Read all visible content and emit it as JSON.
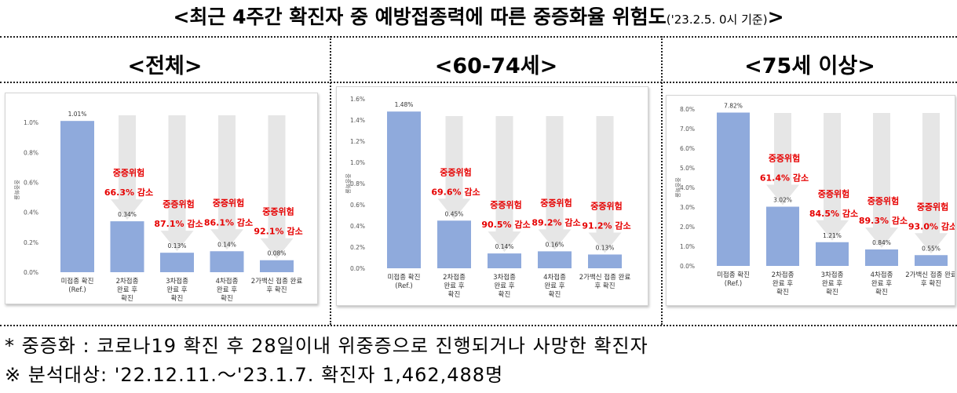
{
  "header": {
    "title_main": "<최근 4주간 확진자 중 예방접종력에 따른 중증화율 위험도",
    "title_sub": "('23.2.5. 0시 기준)",
    "title_end": ">"
  },
  "notes": {
    "definition": "* 중증화 : 코로나19 확진 후 28일이내 위중증으로 진행되거나 사망한 확진자",
    "analysis": "※ 분석대상: '22.12.11.～'23.1.7. 확진자 1,462,488명"
  },
  "colors": {
    "bar": "#8faadc",
    "arrow": "#e6e6e6",
    "risk_text": "#e60000"
  },
  "chart_data": [
    {
      "panel_title": "<전체>",
      "type": "bar",
      "ylabel": "중증화율",
      "ylim": [
        0,
        1.1
      ],
      "yticks": [
        "0.0%",
        "0.2%",
        "0.4%",
        "0.6%",
        "0.8%",
        "1.0%"
      ],
      "ytick_values": [
        0,
        0.2,
        0.4,
        0.6,
        0.8,
        1.0
      ],
      "categories": [
        [
          "미접종 확진",
          "(Ref.)"
        ],
        [
          "2차접종",
          "완료 후",
          "확진"
        ],
        [
          "3차접종",
          "완료 후",
          "확진"
        ],
        [
          "4차접종",
          "완료 후",
          "확진"
        ],
        [
          "2가백신 접종 완료",
          "후 확진"
        ]
      ],
      "values": [
        1.01,
        0.34,
        0.13,
        0.14,
        0.08
      ],
      "value_labels": [
        "1.01%",
        "0.34%",
        "0.13%",
        "0.14%",
        "0.08%"
      ],
      "risk_labels": [
        "",
        "중증위험",
        "중증위험",
        "중증위험",
        "중증위험"
      ],
      "risk_reductions": [
        "",
        "66.3% 감소",
        "87.1% 감소",
        "86.1% 감소",
        "92.1% 감소"
      ]
    },
    {
      "panel_title": "<60-74세>",
      "type": "bar",
      "ylabel": "중증화율",
      "ylim": [
        0,
        1.6
      ],
      "yticks": [
        "0.0%",
        "0.2%",
        "0.4%",
        "0.6%",
        "0.8%",
        "1.0%",
        "1.2%",
        "1.4%",
        "1.6%"
      ],
      "ytick_values": [
        0,
        0.2,
        0.4,
        0.6,
        0.8,
        1.0,
        1.2,
        1.4,
        1.6
      ],
      "categories": [
        [
          "미접종 확진",
          "(Ref.)"
        ],
        [
          "2차접종",
          "완료 후",
          "확진"
        ],
        [
          "3차접종",
          "완료 후",
          "확진"
        ],
        [
          "4차접종",
          "완료 후",
          "확진"
        ],
        [
          "2가백신 접종 완료",
          "후 확진"
        ]
      ],
      "values": [
        1.48,
        0.45,
        0.14,
        0.16,
        0.13
      ],
      "value_labels": [
        "1.48%",
        "0.45%",
        "0.14%",
        "0.16%",
        "0.13%"
      ],
      "risk_labels": [
        "",
        "중증위험",
        "중증위험",
        "중증위험",
        "중증위험"
      ],
      "risk_reductions": [
        "",
        "69.6% 감소",
        "90.5% 감소",
        "89.2% 감소",
        "91.2% 감소"
      ]
    },
    {
      "panel_title": "<75세 이상>",
      "type": "bar",
      "ylabel": "중증화율",
      "ylim": [
        0,
        8.0
      ],
      "yticks": [
        "0.0%",
        "1.0%",
        "2.0%",
        "3.0%",
        "4.0%",
        "5.0%",
        "6.0%",
        "7.0%",
        "8.0%"
      ],
      "ytick_values": [
        0,
        1,
        2,
        3,
        4,
        5,
        6,
        7,
        8
      ],
      "categories": [
        [
          "미접종 확진",
          "(Ref.)"
        ],
        [
          "2차접종",
          "완료 후",
          "확진"
        ],
        [
          "3차접종",
          "완료 후",
          "확진"
        ],
        [
          "4차접종",
          "완료 후",
          "확진"
        ],
        [
          "2가백신 접종 완료",
          "후 확진"
        ]
      ],
      "values": [
        7.82,
        3.02,
        1.21,
        0.84,
        0.55
      ],
      "value_labels": [
        "7.82%",
        "3.02%",
        "1.21%",
        "0.84%",
        "0.55%"
      ],
      "risk_labels": [
        "",
        "중증위험",
        "중증위험",
        "중증위험",
        "중증위험"
      ],
      "risk_reductions": [
        "",
        "61.4% 감소",
        "84.5% 감소",
        "89.3% 감소",
        "93.0% 감소"
      ]
    }
  ]
}
